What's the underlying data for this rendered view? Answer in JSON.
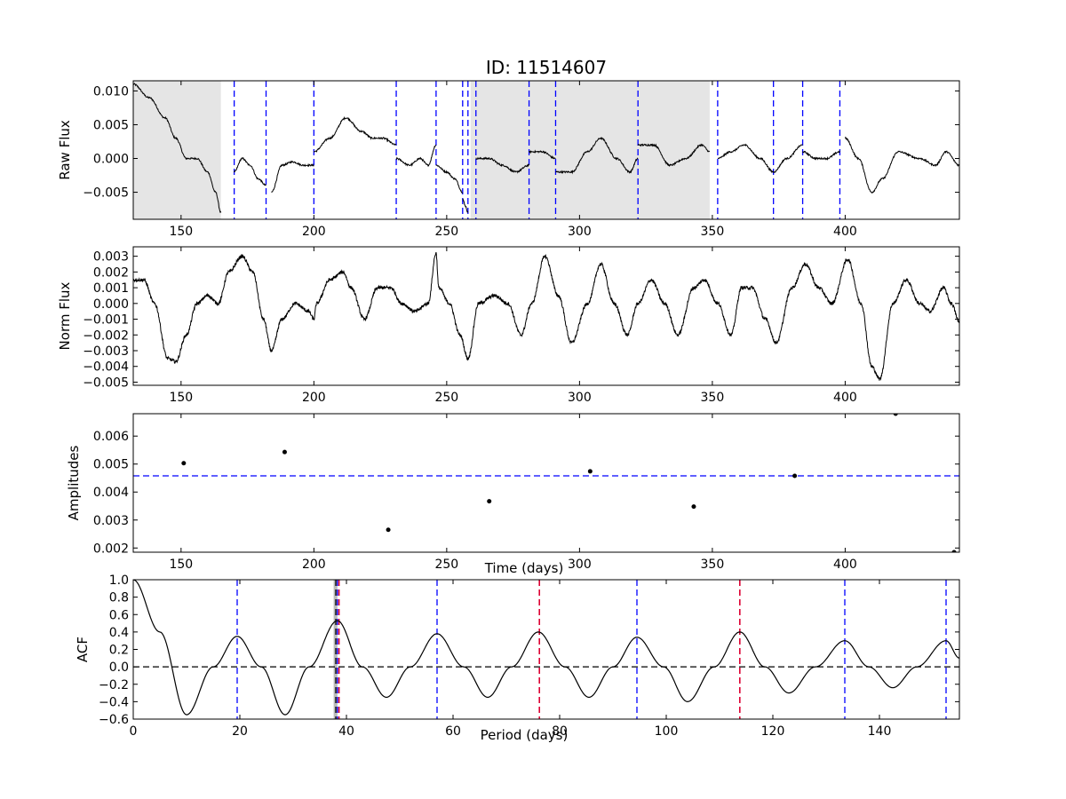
{
  "title": "ID: 11514607",
  "chart_data": [
    {
      "id": "raw",
      "type": "line",
      "ylabel": "Raw Flux",
      "xlabel": "",
      "xlim": [
        132,
        443
      ],
      "ylim": [
        -0.009,
        0.0115
      ],
      "xticks": [
        150,
        200,
        250,
        300,
        350,
        400
      ],
      "yticks": [
        -0.005,
        0.0,
        0.005,
        0.01
      ],
      "ytick_labels": [
        "−0.005",
        "0.000",
        "0.005",
        "0.010"
      ],
      "shaded_regions": [
        [
          132,
          165
        ],
        [
          259,
          349
        ]
      ],
      "vlines": [
        170,
        182,
        200,
        231,
        246,
        256,
        258,
        261,
        281,
        291,
        322,
        352,
        373,
        384,
        398
      ],
      "segments": [
        [
          [
            132,
            0.011
          ],
          [
            138,
            0.009
          ],
          [
            144,
            0.006
          ],
          [
            148,
            0.003
          ],
          [
            152,
            0.0
          ],
          [
            156,
            0.0
          ],
          [
            160,
            -0.002
          ],
          [
            163,
            -0.005
          ],
          [
            165,
            -0.008
          ]
        ],
        [
          [
            170,
            -0.002
          ],
          [
            173,
            0.0
          ],
          [
            176,
            -0.001
          ],
          [
            179,
            -0.003
          ],
          [
            182,
            -0.004
          ]
        ],
        [
          [
            184,
            -0.005
          ],
          [
            188,
            -0.001
          ],
          [
            192,
            -0.0005
          ],
          [
            196,
            -0.001
          ],
          [
            200,
            -0.001
          ]
        ],
        [
          [
            200,
            0.001
          ],
          [
            206,
            0.003
          ],
          [
            212,
            0.006
          ],
          [
            218,
            0.004
          ],
          [
            222,
            0.003
          ],
          [
            226,
            0.003
          ],
          [
            231,
            0.002
          ]
        ],
        [
          [
            231,
            0.0
          ],
          [
            236,
            -0.001
          ],
          [
            240,
            0.0
          ],
          [
            243,
            -0.001
          ],
          [
            246,
            0.002
          ]
        ],
        [
          [
            246,
            -0.001
          ],
          [
            250,
            -0.002
          ],
          [
            253,
            -0.003
          ],
          [
            256,
            -0.005
          ]
        ],
        [
          [
            256,
            -0.006
          ],
          [
            257,
            -0.007
          ],
          [
            258,
            -0.008
          ]
        ],
        [
          [
            261,
            0.0
          ],
          [
            266,
            0.0
          ],
          [
            271,
            -0.001
          ],
          [
            276,
            -0.002
          ],
          [
            281,
            -0.001
          ]
        ],
        [
          [
            281,
            0.001
          ],
          [
            286,
            0.001
          ],
          [
            291,
            0.0
          ]
        ],
        [
          [
            291,
            -0.002
          ],
          [
            297,
            -0.002
          ],
          [
            303,
            0.001
          ],
          [
            308,
            0.003
          ],
          [
            314,
            0.0
          ],
          [
            319,
            -0.002
          ],
          [
            322,
            0.0
          ]
        ],
        [
          [
            322,
            0.002
          ],
          [
            328,
            0.002
          ],
          [
            334,
            -0.001
          ],
          [
            340,
            0.0
          ],
          [
            346,
            0.002
          ],
          [
            349,
            0.001
          ]
        ],
        [
          [
            352,
            0.0
          ],
          [
            357,
            0.001
          ],
          [
            362,
            0.002
          ],
          [
            368,
            0.0
          ],
          [
            373,
            -0.002
          ]
        ],
        [
          [
            373,
            -0.002
          ],
          [
            378,
            0.0
          ],
          [
            384,
            0.002
          ]
        ],
        [
          [
            384,
            0.001
          ],
          [
            389,
            0.0
          ],
          [
            393,
            0.0
          ],
          [
            398,
            0.001
          ]
        ],
        [
          [
            400,
            0.003
          ],
          [
            405,
            0.0
          ],
          [
            410,
            -0.005
          ],
          [
            414,
            -0.003
          ],
          [
            420,
            0.001
          ],
          [
            428,
            0.0
          ],
          [
            434,
            -0.001
          ],
          [
            438,
            0.001
          ],
          [
            443,
            -0.001
          ]
        ]
      ]
    },
    {
      "id": "norm",
      "type": "line",
      "ylabel": "Norm Flux",
      "xlabel": "",
      "xlim": [
        132,
        443
      ],
      "ylim": [
        -0.0052,
        0.0036
      ],
      "xticks": [
        150,
        200,
        250,
        300,
        350,
        400
      ],
      "yticks": [
        -0.005,
        -0.004,
        -0.003,
        -0.002,
        -0.001,
        0.0,
        0.001,
        0.002,
        0.003
      ],
      "ytick_labels": [
        "−0.005",
        "−0.004",
        "−0.003",
        "−0.002",
        "−0.001",
        "0.000",
        "0.001",
        "0.002",
        "0.003"
      ],
      "series_points": [
        [
          132,
          0.0015
        ],
        [
          136,
          0.0015
        ],
        [
          140,
          0.0
        ],
        [
          145,
          -0.0035
        ],
        [
          148,
          -0.0037
        ],
        [
          152,
          -0.002
        ],
        [
          156,
          0.0
        ],
        [
          160,
          0.0005
        ],
        [
          164,
          0.0
        ],
        [
          168,
          0.002
        ],
        [
          173,
          0.003
        ],
        [
          177,
          0.002
        ],
        [
          181,
          -0.001
        ],
        [
          184,
          -0.003
        ],
        [
          188,
          -0.001
        ],
        [
          193,
          0.0
        ],
        [
          198,
          -0.0005
        ],
        [
          200,
          -0.001
        ],
        [
          201,
          0.0
        ],
        [
          206,
          0.0015
        ],
        [
          211,
          0.002
        ],
        [
          214,
          0.001
        ],
        [
          219,
          -0.001
        ],
        [
          224,
          0.001
        ],
        [
          229,
          0.001
        ],
        [
          233,
          0.0
        ],
        [
          238,
          -0.0005
        ],
        [
          243,
          0.0
        ],
        [
          246,
          0.0032
        ],
        [
          247,
          0.001
        ],
        [
          251,
          0.0
        ],
        [
          255,
          -0.002
        ],
        [
          258,
          -0.0035
        ],
        [
          262,
          0.0
        ],
        [
          268,
          0.0005
        ],
        [
          273,
          0.0
        ],
        [
          278,
          -0.002
        ],
        [
          282,
          0.0
        ],
        [
          287,
          0.003
        ],
        [
          292,
          0.0005
        ],
        [
          297,
          -0.0025
        ],
        [
          303,
          0.0
        ],
        [
          308,
          0.0025
        ],
        [
          313,
          0.0
        ],
        [
          318,
          -0.002
        ],
        [
          322,
          0.0
        ],
        [
          327,
          0.0015
        ],
        [
          332,
          0.0
        ],
        [
          337,
          -0.002
        ],
        [
          343,
          0.001
        ],
        [
          347,
          0.0015
        ],
        [
          352,
          0.0
        ],
        [
          357,
          -0.002
        ],
        [
          361,
          0.001
        ],
        [
          365,
          0.001
        ],
        [
          370,
          -0.001
        ],
        [
          374,
          -0.0025
        ],
        [
          380,
          0.001
        ],
        [
          385,
          0.0025
        ],
        [
          390,
          0.001
        ],
        [
          395,
          0.0
        ],
        [
          401,
          0.0028
        ],
        [
          406,
          0.0
        ],
        [
          410,
          -0.004
        ],
        [
          413,
          -0.0048
        ],
        [
          418,
          0.0
        ],
        [
          423,
          0.0015
        ],
        [
          428,
          0.0
        ],
        [
          432,
          -0.0005
        ],
        [
          437,
          0.001
        ],
        [
          440,
          0.0
        ],
        [
          443,
          -0.0012
        ]
      ]
    },
    {
      "id": "amps",
      "type": "scatter",
      "ylabel": "Amplitudes",
      "xlabel": "Time (days)",
      "xlim": [
        132,
        443
      ],
      "ylim": [
        0.00185,
        0.0068
      ],
      "xticks": [
        150,
        200,
        250,
        300,
        350,
        400
      ],
      "yticks": [
        0.002,
        0.003,
        0.004,
        0.005,
        0.006
      ],
      "ytick_labels": [
        "0.002",
        "0.003",
        "0.004",
        "0.005",
        "0.006"
      ],
      "hline": 0.00458,
      "points": [
        [
          151,
          0.00503
        ],
        [
          189,
          0.00543
        ],
        [
          228,
          0.00265
        ],
        [
          266,
          0.00367
        ],
        [
          304,
          0.00474
        ],
        [
          343,
          0.00348
        ],
        [
          381,
          0.00458
        ],
        [
          419,
          0.0068
        ],
        [
          441,
          0.00185
        ]
      ]
    },
    {
      "id": "acf",
      "type": "line",
      "ylabel": "ACF",
      "xlabel": "Period (days)",
      "xlim": [
        0,
        155
      ],
      "ylim": [
        -0.6,
        1.0
      ],
      "xticks": [
        0,
        20,
        40,
        60,
        80,
        100,
        120,
        140
      ],
      "yticks": [
        -0.6,
        -0.4,
        -0.2,
        0.0,
        0.2,
        0.4,
        0.6,
        0.8,
        1.0
      ],
      "ytick_labels": [
        "−0.6",
        "−0.4",
        "−0.2",
        "0.0",
        "0.2",
        "0.4",
        "0.6",
        "0.8",
        "1.0"
      ],
      "hline": 0.0,
      "shaded_band": [
        37.6,
        38.3
      ],
      "black_vline": 38.0,
      "blue_vlines": [
        19.5,
        38.3,
        57.0,
        94.5,
        133.5,
        152.5
      ],
      "red_vlines": [
        38.6,
        76.2,
        113.8
      ],
      "curve_points": [
        [
          0,
          1.0
        ],
        [
          5,
          0.4
        ],
        [
          10,
          -0.55
        ],
        [
          15,
          0.0
        ],
        [
          19.5,
          0.35
        ],
        [
          24,
          0.0
        ],
        [
          28.5,
          -0.55
        ],
        [
          33,
          0.0
        ],
        [
          38.3,
          0.53
        ],
        [
          43,
          0.0
        ],
        [
          47.5,
          -0.35
        ],
        [
          52,
          0.0
        ],
        [
          57,
          0.38
        ],
        [
          62,
          0.0
        ],
        [
          66.5,
          -0.35
        ],
        [
          71,
          0.0
        ],
        [
          76,
          0.4
        ],
        [
          81,
          0.0
        ],
        [
          85.5,
          -0.35
        ],
        [
          90,
          0.0
        ],
        [
          94.5,
          0.34
        ],
        [
          99.5,
          0.0
        ],
        [
          104,
          -0.4
        ],
        [
          109,
          0.0
        ],
        [
          113.8,
          0.4
        ],
        [
          118.5,
          0.0
        ],
        [
          123,
          -0.3
        ],
        [
          128,
          0.0
        ],
        [
          133.5,
          0.3
        ],
        [
          138,
          0.0
        ],
        [
          142.5,
          -0.24
        ],
        [
          147,
          0.0
        ],
        [
          152.5,
          0.3
        ],
        [
          155,
          0.1
        ]
      ]
    }
  ]
}
